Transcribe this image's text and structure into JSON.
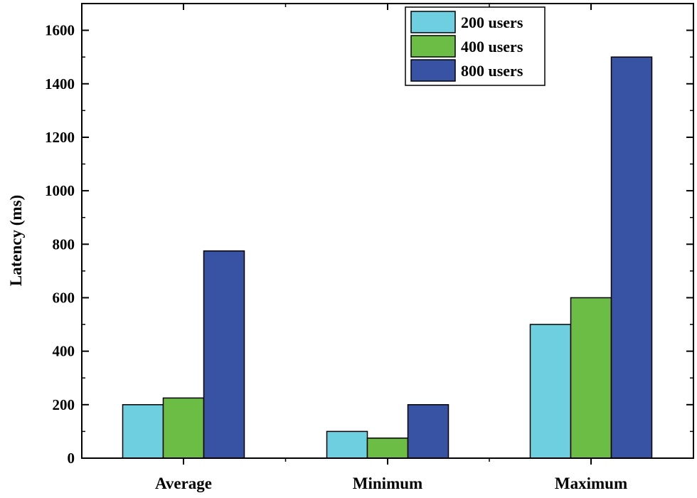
{
  "chart_data": {
    "type": "bar",
    "title": "",
    "xlabel": "",
    "ylabel": "Latency (ms)",
    "ylim": [
      0,
      1700
    ],
    "yticks": [
      0,
      200,
      400,
      600,
      800,
      1000,
      1200,
      1400,
      1600
    ],
    "categories": [
      "Average",
      "Minimum",
      "Maximum"
    ],
    "series": [
      {
        "name": "200 users",
        "color": "#6ecfe0",
        "values": [
          200,
          100,
          500
        ]
      },
      {
        "name": "400 users",
        "color": "#6cbd45",
        "values": [
          225,
          75,
          600
        ]
      },
      {
        "name": "800 users",
        "color": "#3953a4",
        "values": [
          775,
          200,
          1500
        ]
      }
    ],
    "legend_position": "top-right",
    "grid": false
  }
}
